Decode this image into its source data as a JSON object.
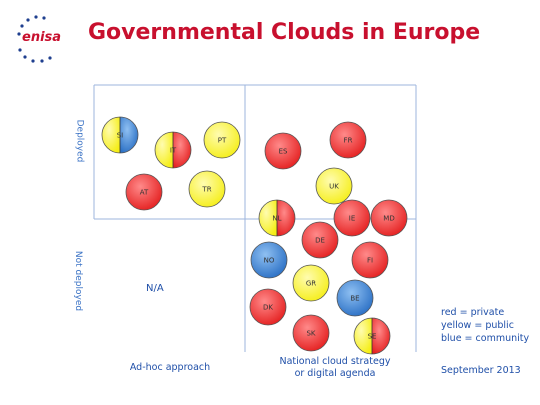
{
  "logo": {
    "text": "enisa"
  },
  "title": "Governmental Clouds in Europe",
  "axes": {
    "y_top": "Deployed",
    "y_bottom": "Not deployed",
    "x_left": "Ad-hoc approach",
    "x_right_line1": "National cloud strategy",
    "x_right_line2": "or digital agenda"
  },
  "na_label": "N/A",
  "legend": {
    "line1": "red = private",
    "line2": "yellow = public",
    "line3": "blue = community"
  },
  "date": "September 2013",
  "colors": {
    "red": "#e41f1f",
    "yellow": "#f5ee18",
    "blue": "#2a6fc4",
    "title": "#c8102e",
    "grid": "#9db5dd"
  },
  "bubbles": [
    {
      "code": "SI",
      "quadrant": "adhoc-deployed",
      "fill": [
        "yellow",
        "blue"
      ]
    },
    {
      "code": "IT",
      "quadrant": "adhoc-deployed",
      "fill": [
        "yellow",
        "red"
      ]
    },
    {
      "code": "PT",
      "quadrant": "adhoc-deployed",
      "fill": [
        "yellow"
      ]
    },
    {
      "code": "AT",
      "quadrant": "adhoc-deployed",
      "fill": [
        "red"
      ]
    },
    {
      "code": "TR",
      "quadrant": "adhoc-deployed",
      "fill": [
        "yellow"
      ]
    },
    {
      "code": "ES",
      "quadrant": "national-deployed",
      "fill": [
        "red"
      ]
    },
    {
      "code": "FR",
      "quadrant": "national-deployed",
      "fill": [
        "red"
      ]
    },
    {
      "code": "UK",
      "quadrant": "national-deployed",
      "fill": [
        "yellow"
      ]
    },
    {
      "code": "NL",
      "quadrant": "national-deployed",
      "fill": [
        "yellow",
        "red"
      ]
    },
    {
      "code": "IE",
      "quadrant": "national-deployed",
      "fill": [
        "red"
      ]
    },
    {
      "code": "MD",
      "quadrant": "national-deployed",
      "fill": [
        "red"
      ]
    },
    {
      "code": "DE",
      "quadrant": "national-not-deployed",
      "fill": [
        "red"
      ]
    },
    {
      "code": "NO",
      "quadrant": "national-not-deployed",
      "fill": [
        "blue"
      ]
    },
    {
      "code": "FI",
      "quadrant": "national-not-deployed",
      "fill": [
        "red"
      ]
    },
    {
      "code": "GR",
      "quadrant": "national-not-deployed",
      "fill": [
        "yellow"
      ]
    },
    {
      "code": "BE",
      "quadrant": "national-not-deployed",
      "fill": [
        "blue"
      ]
    },
    {
      "code": "DK",
      "quadrant": "national-not-deployed",
      "fill": [
        "red"
      ]
    },
    {
      "code": "SK",
      "quadrant": "national-not-deployed",
      "fill": [
        "red"
      ]
    },
    {
      "code": "SE",
      "quadrant": "national-not-deployed",
      "fill": [
        "yellow",
        "red"
      ]
    }
  ]
}
